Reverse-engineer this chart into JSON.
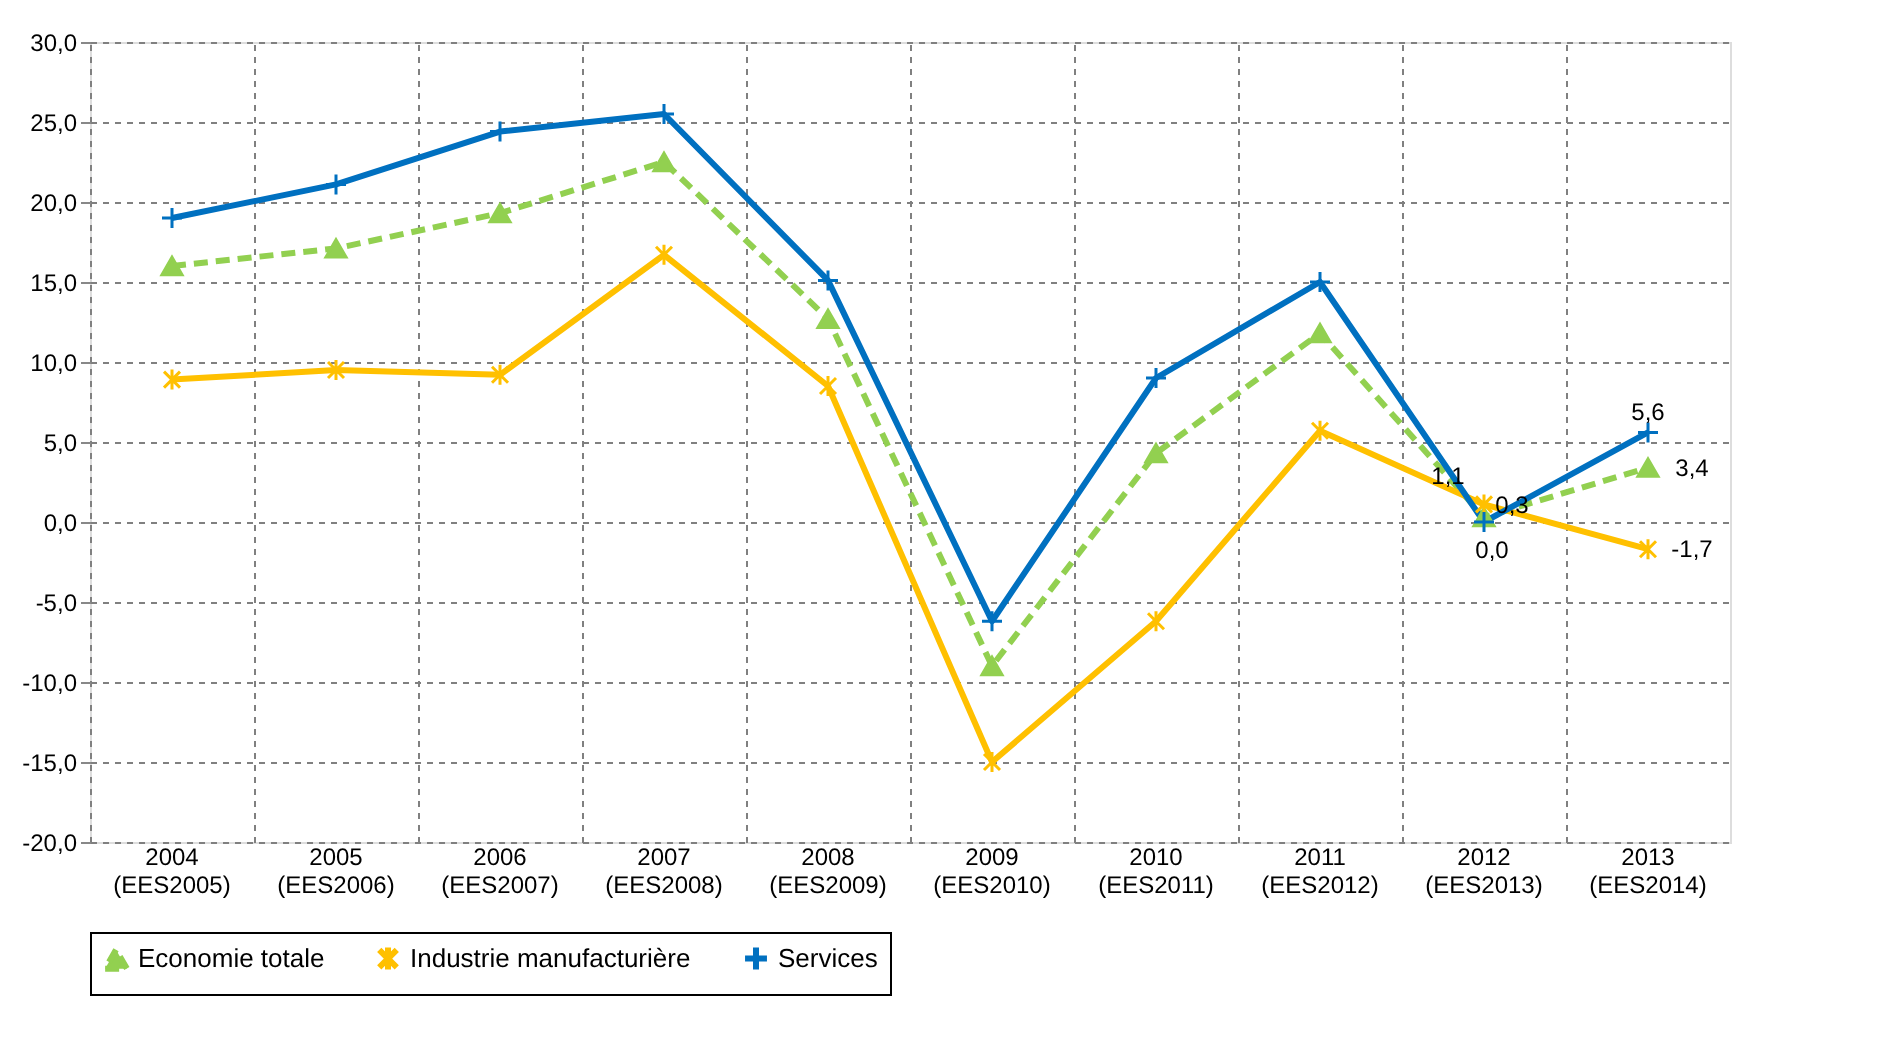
{
  "chart_data": {
    "type": "line",
    "categories": [
      "2004\n(EES2005)",
      "2005\n(EES2006)",
      "2006\n(EES2007)",
      "2007\n(EES2008)",
      "2008\n(EES2009)",
      "2009\n(EES2010)",
      "2010\n(EES2011)",
      "2011\n(EES2012)",
      "2012\n(EES2013)",
      "2013\n(EES2014)"
    ],
    "series": [
      {
        "name": "Economie totale",
        "color": "#92d050",
        "marker": "triangle",
        "line_style": "dashed",
        "values": [
          16.0,
          17.1,
          19.3,
          22.5,
          12.7,
          -9.0,
          4.3,
          11.8,
          0.3,
          3.4
        ],
        "value_labels": [
          null,
          null,
          null,
          null,
          null,
          null,
          null,
          null,
          "0,3",
          "3,4"
        ]
      },
      {
        "name": "Industrie manufacturière",
        "color": "#ffc000",
        "marker": "cross",
        "line_style": "solid",
        "values": [
          8.9,
          9.5,
          9.2,
          16.7,
          8.5,
          -15.0,
          -6.2,
          5.7,
          1.1,
          -1.7
        ],
        "value_labels": [
          null,
          null,
          null,
          null,
          null,
          null,
          null,
          null,
          "1,1",
          "-1,7"
        ]
      },
      {
        "name": "Services",
        "color": "#0070c0",
        "marker": "cross",
        "line_style": "solid",
        "values": [
          19.0,
          21.1,
          24.4,
          25.5,
          15.1,
          -6.2,
          9.0,
          15.0,
          0.0,
          5.6
        ],
        "value_labels": [
          null,
          null,
          null,
          null,
          null,
          null,
          null,
          null,
          "0,0",
          "5,6"
        ]
      }
    ],
    "ylim": [
      -20,
      30
    ],
    "yticks": [
      {
        "value": -20,
        "label": "-20,0"
      },
      {
        "value": -15,
        "label": "-15,0"
      },
      {
        "value": -10,
        "label": "-10,0"
      },
      {
        "value": -5,
        "label": "-5,0"
      },
      {
        "value": 0,
        "label": "0,0"
      },
      {
        "value": 5,
        "label": "5,0"
      },
      {
        "value": 10,
        "label": "10,0"
      },
      {
        "value": 15,
        "label": "15,0"
      },
      {
        "value": 20,
        "label": "20,0"
      },
      {
        "value": 25,
        "label": "25,0"
      },
      {
        "value": 30,
        "label": "30,0"
      }
    ],
    "grid": true,
    "legend": "bottom"
  }
}
